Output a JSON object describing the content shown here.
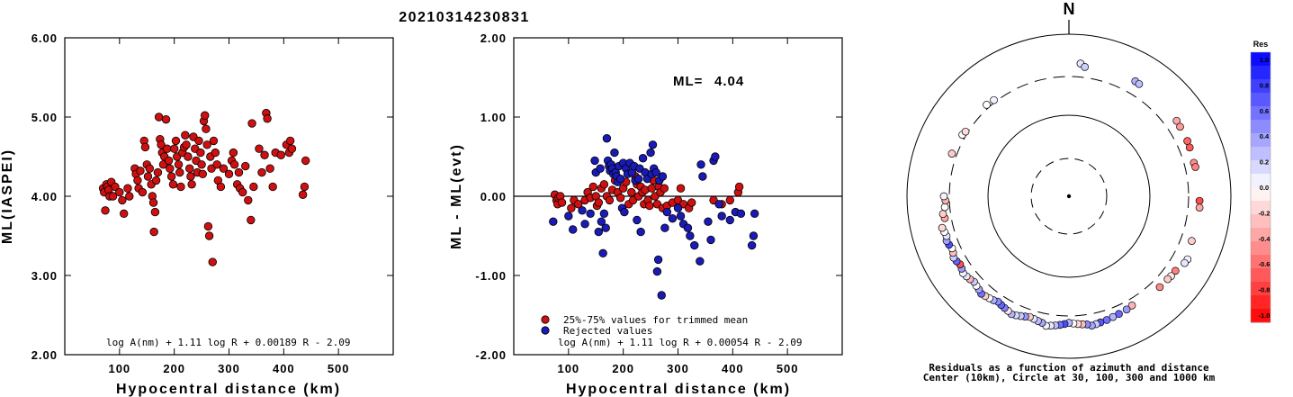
{
  "event_id": "20210314230831",
  "chart_data": [
    {
      "type": "scatter",
      "ylabel": "ML(IASPEI)",
      "xlabel": "Hypocentral distance (km)",
      "xlim": [
        0,
        600
      ],
      "ylim": [
        2.0,
        6.0
      ],
      "x_ticks": [
        "100",
        "200",
        "300",
        "400",
        "500"
      ],
      "y_ticks": [
        "2.00",
        "3.00",
        "4.00",
        "5.00",
        "6.00"
      ],
      "formula": "log A(nm) + 1.11 log R + 0.00189 R - 2.09",
      "point_color": "#d01010",
      "points": [
        [
          70,
          4.1
        ],
        [
          72,
          4.05
        ],
        [
          74,
          3.82
        ],
        [
          76,
          4.15
        ],
        [
          78,
          4.12
        ],
        [
          80,
          4.08
        ],
        [
          82,
          4.0
        ],
        [
          85,
          4.18
        ],
        [
          88,
          4.0
        ],
        [
          92,
          4.12
        ],
        [
          100,
          4.05
        ],
        [
          105,
          3.95
        ],
        [
          108,
          3.78
        ],
        [
          115,
          4.1
        ],
        [
          118,
          4.0
        ],
        [
          128,
          4.35
        ],
        [
          130,
          4.28
        ],
        [
          133,
          4.2
        ],
        [
          135,
          4.1
        ],
        [
          138,
          4.32
        ],
        [
          142,
          4.05
        ],
        [
          145,
          4.7
        ],
        [
          147,
          4.62
        ],
        [
          150,
          4.4
        ],
        [
          152,
          4.25
        ],
        [
          155,
          4.35
        ],
        [
          158,
          4.15
        ],
        [
          160,
          4.0
        ],
        [
          162,
          3.92
        ],
        [
          163,
          3.55
        ],
        [
          165,
          3.8
        ],
        [
          167,
          4.2
        ],
        [
          170,
          4.3
        ],
        [
          172,
          5.0
        ],
        [
          174,
          4.72
        ],
        [
          176,
          4.65
        ],
        [
          178,
          4.55
        ],
        [
          180,
          4.4
        ],
        [
          182,
          4.5
        ],
        [
          185,
          4.97
        ],
        [
          187,
          4.6
        ],
        [
          190,
          4.45
        ],
        [
          192,
          4.35
        ],
        [
          195,
          4.25
        ],
        [
          198,
          4.15
        ],
        [
          200,
          4.6
        ],
        [
          203,
          4.7
        ],
        [
          205,
          4.5
        ],
        [
          208,
          4.4
        ],
        [
          210,
          4.3
        ],
        [
          212,
          4.12
        ],
        [
          215,
          4.55
        ],
        [
          218,
          4.62
        ],
        [
          220,
          4.77
        ],
        [
          222,
          4.65
        ],
        [
          225,
          4.5
        ],
        [
          228,
          4.35
        ],
        [
          230,
          4.25
        ],
        [
          232,
          4.15
        ],
        [
          235,
          4.75
        ],
        [
          238,
          4.6
        ],
        [
          240,
          4.45
        ],
        [
          242,
          4.3
        ],
        [
          245,
          4.7
        ],
        [
          248,
          4.55
        ],
        [
          250,
          4.4
        ],
        [
          252,
          4.28
        ],
        [
          254,
          4.95
        ],
        [
          256,
          5.02
        ],
        [
          258,
          4.85
        ],
        [
          260,
          4.65
        ],
        [
          262,
          3.62
        ],
        [
          264,
          3.5
        ],
        [
          266,
          4.5
        ],
        [
          268,
          4.35
        ],
        [
          270,
          3.17
        ],
        [
          272,
          4.7
        ],
        [
          275,
          4.55
        ],
        [
          278,
          4.4
        ],
        [
          280,
          4.2
        ],
        [
          285,
          4.12
        ],
        [
          290,
          4.35
        ],
        [
          300,
          4.28
        ],
        [
          305,
          4.45
        ],
        [
          308,
          4.55
        ],
        [
          310,
          4.4
        ],
        [
          315,
          4.15
        ],
        [
          318,
          4.3
        ],
        [
          320,
          4.1
        ],
        [
          325,
          4.05
        ],
        [
          330,
          4.38
        ],
        [
          335,
          3.95
        ],
        [
          340,
          3.7
        ],
        [
          342,
          4.92
        ],
        [
          345,
          4.12
        ],
        [
          355,
          4.6
        ],
        [
          360,
          4.3
        ],
        [
          365,
          4.52
        ],
        [
          368,
          5.05
        ],
        [
          370,
          4.98
        ],
        [
          375,
          4.35
        ],
        [
          380,
          4.12
        ],
        [
          385,
          4.55
        ],
        [
          395,
          4.52
        ],
        [
          405,
          4.65
        ],
        [
          410,
          4.55
        ],
        [
          412,
          4.7
        ],
        [
          415,
          4.6
        ],
        [
          435,
          4.02
        ],
        [
          438,
          4.12
        ],
        [
          440,
          4.45
        ]
      ]
    },
    {
      "type": "scatter",
      "ylabel": "ML - ML(evt)",
      "xlabel": "Hypocentral distance (km)",
      "xlim": [
        0,
        600
      ],
      "ylim": [
        -2.0,
        2.0
      ],
      "x_ticks": [
        "100",
        "200",
        "300",
        "400",
        "500"
      ],
      "y_ticks": [
        "-2.00",
        "-1.00",
        "0.00",
        "1.00",
        "2.00"
      ],
      "ml_label": "ML=",
      "ml_value": "4.04",
      "formula": "log A(nm) + 1.11 log R + 0.00054 R - 2.09",
      "legend": [
        {
          "label": "25%-75% values for trimmed mean",
          "color": "#d01010"
        },
        {
          "label": "Rejected values",
          "color": "#1a1ab8"
        }
      ],
      "trimmed_points": [
        [
          75,
          0.02
        ],
        [
          78,
          -0.05
        ],
        [
          80,
          -0.1
        ],
        [
          82,
          -0.02
        ],
        [
          85,
          0.0
        ],
        [
          88,
          -0.08
        ],
        [
          105,
          -0.15
        ],
        [
          110,
          -0.05
        ],
        [
          118,
          -0.1
        ],
        [
          130,
          -0.05
        ],
        [
          135,
          0.05
        ],
        [
          140,
          -0.02
        ],
        [
          145,
          0.12
        ],
        [
          150,
          0.0
        ],
        [
          152,
          -0.12
        ],
        [
          155,
          -0.08
        ],
        [
          160,
          0.1
        ],
        [
          165,
          0.15
        ],
        [
          170,
          0.0
        ],
        [
          175,
          -0.05
        ],
        [
          180,
          0.08
        ],
        [
          185,
          0.2
        ],
        [
          190,
          0.05
        ],
        [
          195,
          -0.02
        ],
        [
          200,
          0.1
        ],
        [
          205,
          0.18
        ],
        [
          210,
          -0.1
        ],
        [
          215,
          0.05
        ],
        [
          218,
          -0.05
        ],
        [
          222,
          0.25
        ],
        [
          225,
          0.15
        ],
        [
          228,
          0.0
        ],
        [
          232,
          0.12
        ],
        [
          235,
          0.05
        ],
        [
          238,
          -0.1
        ],
        [
          240,
          0.08
        ],
        [
          245,
          -0.05
        ],
        [
          248,
          -0.12
        ],
        [
          252,
          0.1
        ],
        [
          255,
          0.2
        ],
        [
          258,
          0.0
        ],
        [
          262,
          -0.1
        ],
        [
          265,
          0.12
        ],
        [
          268,
          0.05
        ],
        [
          272,
          -0.15
        ],
        [
          275,
          0.1
        ],
        [
          280,
          -0.12
        ],
        [
          290,
          -0.08
        ],
        [
          300,
          -0.05
        ],
        [
          305,
          0.1
        ],
        [
          310,
          -0.1
        ],
        [
          320,
          -0.15
        ],
        [
          325,
          -0.08
        ],
        [
          365,
          -0.05
        ],
        [
          380,
          -0.1
        ],
        [
          395,
          -0.05
        ],
        [
          410,
          0.05
        ],
        [
          412,
          0.12
        ]
      ],
      "rejected_points": [
        [
          72,
          -0.32
        ],
        [
          100,
          -0.25
        ],
        [
          108,
          -0.42
        ],
        [
          125,
          -0.18
        ],
        [
          130,
          -0.35
        ],
        [
          140,
          -0.22
        ],
        [
          148,
          0.45
        ],
        [
          150,
          0.3
        ],
        [
          155,
          -0.45
        ],
        [
          158,
          0.35
        ],
        [
          160,
          -0.32
        ],
        [
          163,
          -0.72
        ],
        [
          165,
          -0.22
        ],
        [
          168,
          -0.4
        ],
        [
          170,
          0.73
        ],
        [
          172,
          0.45
        ],
        [
          174,
          0.38
        ],
        [
          176,
          0.32
        ],
        [
          178,
          0.4
        ],
        [
          180,
          0.35
        ],
        [
          182,
          0.28
        ],
        [
          184,
          0.55
        ],
        [
          186,
          0.3
        ],
        [
          188,
          0.25
        ],
        [
          190,
          0.18
        ],
        [
          192,
          0.38
        ],
        [
          195,
          0.22
        ],
        [
          198,
          -0.15
        ],
        [
          200,
          0.42
        ],
        [
          202,
          -0.2
        ],
        [
          205,
          0.35
        ],
        [
          208,
          0.28
        ],
        [
          212,
          0.42
        ],
        [
          216,
          0.3
        ],
        [
          220,
          0.38
        ],
        [
          222,
          0.2
        ],
        [
          225,
          -0.3
        ],
        [
          228,
          0.22
        ],
        [
          230,
          0.35
        ],
        [
          232,
          -0.45
        ],
        [
          236,
          0.48
        ],
        [
          240,
          0.3
        ],
        [
          244,
          0.22
        ],
        [
          250,
          0.55
        ],
        [
          252,
          0.28
        ],
        [
          254,
          0.65
        ],
        [
          256,
          0.35
        ],
        [
          260,
          0.3
        ],
        [
          262,
          -0.95
        ],
        [
          264,
          -0.8
        ],
        [
          266,
          0.2
        ],
        [
          270,
          -1.25
        ],
        [
          272,
          0.25
        ],
        [
          276,
          -0.4
        ],
        [
          280,
          -0.2
        ],
        [
          290,
          -0.28
        ],
        [
          300,
          -0.15
        ],
        [
          305,
          -0.25
        ],
        [
          310,
          -0.35
        ],
        [
          318,
          -0.4
        ],
        [
          322,
          -0.5
        ],
        [
          330,
          -0.62
        ],
        [
          340,
          -0.82
        ],
        [
          342,
          0.4
        ],
        [
          345,
          0.25
        ],
        [
          355,
          -0.32
        ],
        [
          360,
          -0.55
        ],
        [
          365,
          0.45
        ],
        [
          368,
          0.5
        ],
        [
          375,
          -0.1
        ],
        [
          380,
          -0.25
        ],
        [
          395,
          -0.3
        ],
        [
          405,
          -0.2
        ],
        [
          415,
          -0.22
        ],
        [
          435,
          -0.62
        ],
        [
          438,
          -0.5
        ],
        [
          440,
          -0.22
        ]
      ]
    },
    {
      "type": "scatter",
      "north_label": "N",
      "caption_line1": "Residuals as a function of azimuth and distance",
      "caption_line2": "Center (10km), Circle at 30, 100, 300 and 1000 km",
      "colorbar": {
        "title": "Res",
        "ticks": [
          "1.0",
          "0.8",
          "0.6",
          "0.4",
          "0.2",
          "0.0",
          "-0.2",
          "-0.4",
          "-0.6",
          "-0.8",
          "-1.0"
        ],
        "positive_color": "#0000ff",
        "negative_color": "#ff0000"
      },
      "stations": [
        [
          5,
          440,
          0.1
        ],
        [
          7,
          405,
          0.2
        ],
        [
          30,
          435,
          0.3
        ],
        [
          32,
          430,
          0.25
        ],
        [
          55,
          420,
          -0.35
        ],
        [
          58,
          415,
          -0.4
        ],
        [
          65,
          410,
          -0.6
        ],
        [
          68,
          405,
          -0.65
        ],
        [
          75,
          395,
          -0.45
        ],
        [
          77,
          400,
          -0.5
        ],
        [
          92,
          410,
          -0.7
        ],
        [
          95,
          415,
          -0.35
        ],
        [
          110,
          410,
          -0.2
        ],
        [
          118,
          455,
          0.05
        ],
        [
          120,
          445,
          0.1
        ],
        [
          125,
          402,
          -0.5
        ],
        [
          128,
          398,
          -0.1
        ],
        [
          130,
          390,
          -0.2
        ],
        [
          135,
          385,
          -0.45
        ],
        [
          150,
          360,
          -0.3
        ],
        [
          153,
          370,
          0.4
        ],
        [
          157,
          378,
          0.6
        ],
        [
          160,
          385,
          0.3
        ],
        [
          163,
          395,
          0.55
        ],
        [
          166,
          402,
          0.65
        ],
        [
          168,
          410,
          0.2
        ],
        [
          170,
          418,
          0.35
        ],
        [
          172,
          395,
          0.45
        ],
        [
          174,
          388,
          -0.25
        ],
        [
          176,
          380,
          -0.15
        ],
        [
          178,
          372,
          0.0
        ],
        [
          180,
          365,
          0.3
        ],
        [
          182,
          378,
          0.7
        ],
        [
          184,
          390,
          0.55
        ],
        [
          186,
          400,
          0.25
        ],
        [
          188,
          410,
          0.1
        ],
        [
          190,
          420,
          0.05
        ],
        [
          192,
          395,
          0.35
        ],
        [
          194,
          385,
          0.25
        ],
        [
          196,
          375,
          0.1
        ],
        [
          198,
          368,
          -0.2
        ],
        [
          200,
          380,
          0.4
        ],
        [
          202,
          392,
          0.2
        ],
        [
          204,
          405,
          0.15
        ],
        [
          206,
          415,
          0.3
        ],
        [
          208,
          400,
          -0.1
        ],
        [
          210,
          390,
          0.5
        ],
        [
          212,
          380,
          0.6
        ],
        [
          214,
          370,
          0.45
        ],
        [
          216,
          385,
          0.3
        ],
        [
          218,
          395,
          0.0
        ],
        [
          220,
          405,
          -0.2
        ],
        [
          222,
          415,
          0.55
        ],
        [
          224,
          398,
          0.35
        ],
        [
          226,
          388,
          0.0
        ],
        [
          228,
          378,
          0.2
        ],
        [
          230,
          392,
          -0.3
        ],
        [
          232,
          402,
          0.1
        ],
        [
          234,
          412,
          0.05
        ],
        [
          236,
          395,
          0.4
        ],
        [
          238,
          385,
          -0.7
        ],
        [
          240,
          400,
          0.6
        ],
        [
          242,
          410,
          0.2
        ],
        [
          244,
          390,
          -0.25
        ],
        [
          246,
          380,
          0.0
        ],
        [
          248,
          395,
          0.7
        ],
        [
          250,
          405,
          0.35
        ],
        [
          252,
          388,
          0.1
        ],
        [
          254,
          398,
          0.0
        ],
        [
          256,
          410,
          -0.15
        ],
        [
          260,
          360,
          -0.35
        ],
        [
          262,
          372,
          -0.2
        ],
        [
          265,
          345,
          0.0
        ],
        [
          268,
          335,
          -0.3
        ],
        [
          270,
          350,
          0.05
        ],
        [
          290,
          345,
          -0.2
        ],
        [
          300,
          330,
          0.0
        ],
        [
          302,
          320,
          -0.15
        ],
        [
          318,
          330,
          0.0
        ],
        [
          322,
          320,
          0.05
        ]
      ]
    }
  ]
}
